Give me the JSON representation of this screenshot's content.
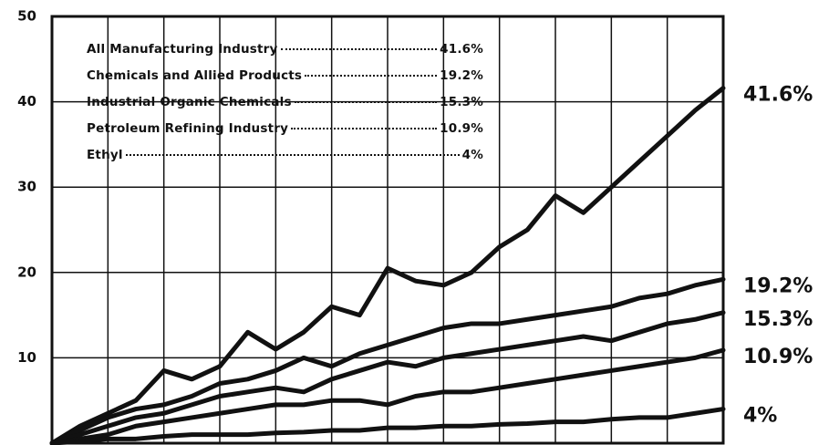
{
  "chart_data": {
    "type": "line",
    "categories": [
      null,
      null,
      null,
      null,
      null,
      null,
      null,
      null,
      null,
      null,
      null,
      null,
      null,
      null,
      null,
      null,
      null,
      null,
      null,
      null,
      null,
      null,
      null,
      null,
      null
    ],
    "ylim": [
      0,
      50
    ],
    "yticks": [
      10,
      20,
      30,
      40,
      50
    ],
    "grid": true,
    "series": [
      {
        "name": "All Manufacturing Industry",
        "color": "#111111",
        "values": [
          0,
          2,
          3.5,
          5,
          8.5,
          7.5,
          9,
          13,
          11,
          13,
          16,
          15,
          20.5,
          19,
          18.5,
          20,
          23,
          25,
          29,
          27,
          30,
          33,
          36,
          39,
          41.6
        ],
        "value_labels": [
          null,
          null,
          null,
          null,
          null,
          null,
          null,
          null,
          null,
          null,
          null,
          null,
          null,
          null,
          null,
          null,
          null,
          null,
          null,
          null,
          null,
          null,
          null,
          null,
          "41.6%"
        ]
      },
      {
        "name": "Chemicals and Allied Products",
        "color": "#111111",
        "values": [
          0,
          1.5,
          3,
          4,
          4.5,
          5.5,
          7,
          7.5,
          8.5,
          10,
          9,
          10.5,
          11.5,
          12.5,
          13.5,
          14,
          14,
          14.5,
          15,
          15.5,
          16,
          17,
          17.5,
          18.5,
          19.2
        ],
        "value_labels": [
          null,
          null,
          null,
          null,
          null,
          null,
          null,
          null,
          null,
          null,
          null,
          null,
          null,
          null,
          null,
          null,
          null,
          null,
          null,
          null,
          null,
          null,
          null,
          null,
          "19.2%"
        ]
      },
      {
        "name": "Industrial Organic Chemicals",
        "color": "#111111",
        "values": [
          0,
          1,
          2,
          3,
          3.5,
          4.5,
          5.5,
          6,
          6.5,
          6,
          7.5,
          8.5,
          9.5,
          9,
          10,
          10.5,
          11,
          11.5,
          12,
          12.5,
          12,
          13,
          14,
          14.5,
          15.3
        ],
        "value_labels": [
          null,
          null,
          null,
          null,
          null,
          null,
          null,
          null,
          null,
          null,
          null,
          null,
          null,
          null,
          null,
          null,
          null,
          null,
          null,
          null,
          null,
          null,
          null,
          null,
          "15.3%"
        ]
      },
      {
        "name": "Petroleum Refining Industry",
        "color": "#111111",
        "values": [
          0,
          0.5,
          1,
          2,
          2.5,
          3,
          3.5,
          4,
          4.5,
          4.5,
          5,
          5,
          4.5,
          5.5,
          6,
          6,
          6.5,
          7,
          7.5,
          8,
          8.5,
          9,
          9.5,
          10,
          10.9
        ],
        "value_labels": [
          null,
          null,
          null,
          null,
          null,
          null,
          null,
          null,
          null,
          null,
          null,
          null,
          null,
          null,
          null,
          null,
          null,
          null,
          null,
          null,
          null,
          null,
          null,
          null,
          "10.9%"
        ]
      },
      {
        "name": "Ethyl",
        "color": "#111111",
        "values": [
          0,
          0.2,
          0.5,
          0.5,
          0.8,
          1,
          1,
          1,
          1.2,
          1.3,
          1.5,
          1.5,
          1.8,
          1.8,
          2,
          2,
          2.2,
          2.3,
          2.5,
          2.5,
          2.8,
          3,
          3,
          3.5,
          4
        ],
        "value_labels": [
          null,
          null,
          null,
          null,
          null,
          null,
          null,
          null,
          null,
          null,
          null,
          null,
          null,
          null,
          null,
          null,
          null,
          null,
          null,
          null,
          null,
          null,
          null,
          null,
          "4%"
        ]
      }
    ]
  }
}
